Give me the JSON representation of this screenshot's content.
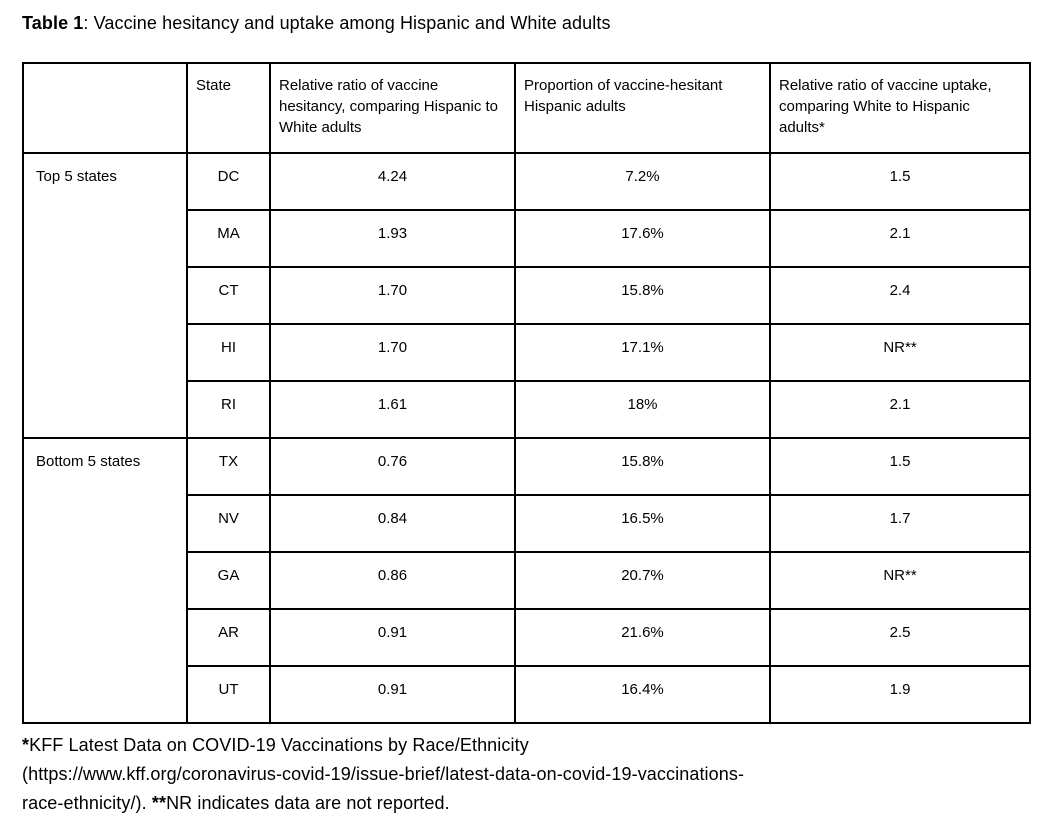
{
  "title": {
    "label": "Table 1",
    "text": ": Vaccine hesitancy and uptake among Hispanic and White adults"
  },
  "table": {
    "headers": {
      "group": "",
      "state": "State",
      "hesitancy": "Relative ratio of vaccine hesitancy, comparing Hispanic to White adults",
      "proportion": "Proportion of vaccine-hesitant Hispanic adults",
      "uptake": "Relative ratio of vaccine uptake, comparing White to Hispanic adults*"
    },
    "group_labels": {
      "top": "Top 5 states",
      "bottom": "Bottom 5 states"
    },
    "rows": [
      {
        "group": "Top 5 states",
        "state": "DC",
        "hesitancy": "4.24",
        "proportion": "7.2%",
        "uptake": "1.5"
      },
      {
        "state": "MA",
        "hesitancy": "1.93",
        "proportion": "17.6%",
        "uptake": "2.1"
      },
      {
        "state": "CT",
        "hesitancy": "1.70",
        "proportion": "15.8%",
        "uptake": "2.4"
      },
      {
        "state": "HI",
        "hesitancy": "1.70",
        "proportion": "17.1%",
        "uptake": "NR**"
      },
      {
        "state": "RI",
        "hesitancy": "1.61",
        "proportion": "18%",
        "uptake": "2.1"
      },
      {
        "group": "Bottom 5 states",
        "state": "TX",
        "hesitancy": "0.76",
        "proportion": "15.8%",
        "uptake": "1.5"
      },
      {
        "state": "NV",
        "hesitancy": "0.84",
        "proportion": "16.5%",
        "uptake": "1.7"
      },
      {
        "state": "GA",
        "hesitancy": "0.86",
        "proportion": "20.7%",
        "uptake": "NR**"
      },
      {
        "state": "AR",
        "hesitancy": "0.91",
        "proportion": "21.6%",
        "uptake": "2.5"
      },
      {
        "state": "UT",
        "hesitancy": "0.91",
        "proportion": "16.4%",
        "uptake": "1.9"
      }
    ],
    "not_reported_value": "NR**"
  },
  "footnote": {
    "marker1": "*",
    "line1": "KFF Latest Data on COVID-19 Vaccinations by Race/Ethnicity",
    "line2": "(https://www.kff.org/coronavirus-covid-19/issue-brief/latest-data-on-covid-19-vaccinations-",
    "line3_prefix": "race-ethnicity/). ",
    "marker2": "**",
    "line3_text": "NR indicates data are not reported."
  },
  "colors": {
    "text": "#000000",
    "border": "#000000",
    "background": "#ffffff"
  }
}
